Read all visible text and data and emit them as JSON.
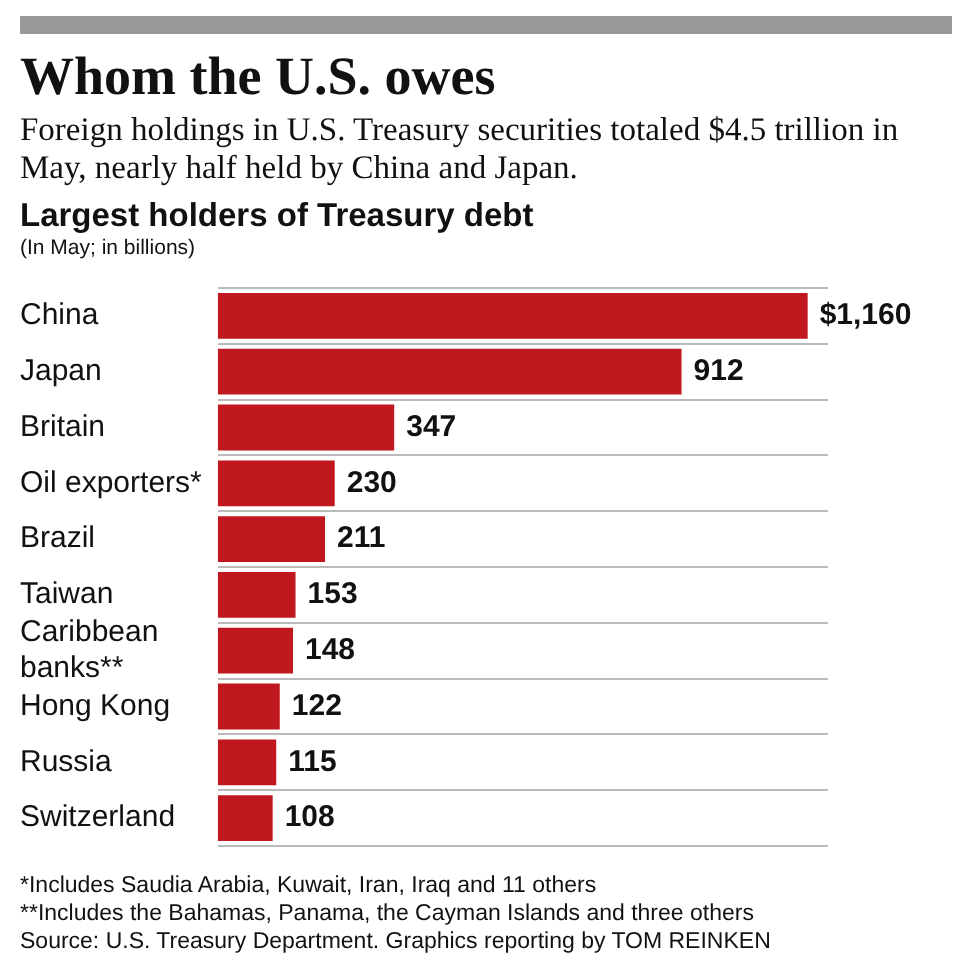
{
  "chart_data": {
    "type": "bar",
    "orientation": "horizontal",
    "title": "Whom the U.S. owes",
    "subtitle": "Foreign holdings in U.S. Treasury securities totaled $4.5 trillion in May, nearly half held by China and Japan.",
    "xlabel": "Largest holders of Treasury debt",
    "ylabel": "(In May; in billions)",
    "categories": [
      "China",
      "Japan",
      "Britain",
      "Oil exporters*",
      "Brazil",
      "Taiwan",
      "Caribbean banks**",
      "Hong Kong",
      "Russia",
      "Switzerland"
    ],
    "values": [
      1160,
      912,
      347,
      230,
      211,
      153,
      148,
      122,
      115,
      108
    ],
    "value_labels": [
      "$1,160",
      "912",
      "347",
      "230",
      "211",
      "153",
      "148",
      "122",
      "115",
      "108"
    ],
    "color": "#c0181e",
    "grid": "y",
    "tick_labels": "y",
    "annotations": [
      "*Includes Saudia Arabia, Kuwait, Iran, Iraq and 11 others",
      "**Includes the Bahamas, Panama, the Cayman Islands and three others",
      "Source: U.S. Treasury Department. Graphics reporting by TOM REINKEN"
    ]
  }
}
